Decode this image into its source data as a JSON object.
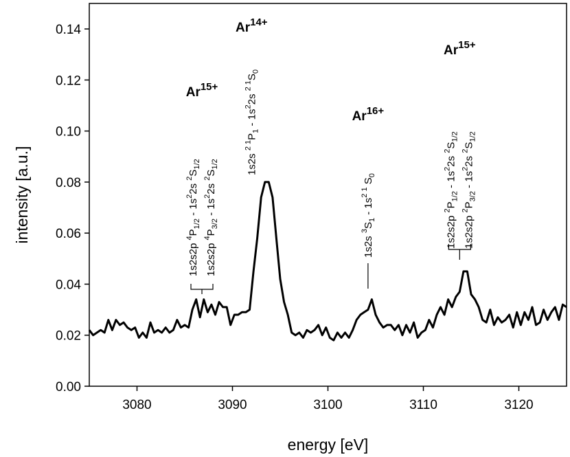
{
  "chart_data": {
    "type": "line",
    "xlabel": "energy [eV]",
    "ylabel": "intensity [a.u.]",
    "xlim": [
      3075,
      3125
    ],
    "ylim": [
      0.0,
      0.15
    ],
    "xticks": [
      "3080",
      "3090",
      "3100",
      "3110",
      "3120"
    ],
    "yticks": [
      "0.00",
      "0.02",
      "0.04",
      "0.06",
      "0.08",
      "0.10",
      "0.12",
      "0.14"
    ],
    "grid": false,
    "series": [
      {
        "name": "spectrum",
        "color": "#000000",
        "x": [
          3075.0,
          3075.4,
          3075.8,
          3076.2,
          3076.6,
          3077.0,
          3077.4,
          3077.8,
          3078.2,
          3078.6,
          3079.0,
          3079.4,
          3079.8,
          3080.2,
          3080.6,
          3081.0,
          3081.4,
          3081.8,
          3082.2,
          3082.6,
          3083.0,
          3083.4,
          3083.8,
          3084.2,
          3084.6,
          3085.0,
          3085.4,
          3085.8,
          3086.2,
          3086.6,
          3087.0,
          3087.4,
          3087.8,
          3088.2,
          3088.6,
          3089.0,
          3089.4,
          3089.8,
          3090.2,
          3090.6,
          3091.0,
          3091.4,
          3091.8,
          3092.2,
          3092.6,
          3093.0,
          3093.4,
          3093.8,
          3094.2,
          3094.6,
          3095.0,
          3095.4,
          3095.8,
          3096.2,
          3096.6,
          3097.0,
          3097.4,
          3097.8,
          3098.2,
          3098.6,
          3099.0,
          3099.4,
          3099.8,
          3100.2,
          3100.6,
          3101.0,
          3101.4,
          3101.8,
          3102.2,
          3102.6,
          3103.0,
          3103.4,
          3103.8,
          3104.2,
          3104.6,
          3105.0,
          3105.4,
          3105.8,
          3106.2,
          3106.6,
          3107.0,
          3107.4,
          3107.8,
          3108.2,
          3108.6,
          3109.0,
          3109.4,
          3109.8,
          3110.2,
          3110.6,
          3111.0,
          3111.4,
          3111.8,
          3112.2,
          3112.6,
          3113.0,
          3113.4,
          3113.8,
          3114.2,
          3114.6,
          3115.0,
          3115.4,
          3115.8,
          3116.2,
          3116.6,
          3117.0,
          3117.4,
          3117.8,
          3118.2,
          3118.6,
          3119.0,
          3119.4,
          3119.8,
          3120.2,
          3120.6,
          3121.0,
          3121.4,
          3121.8,
          3122.2,
          3122.6,
          3123.0,
          3123.4,
          3123.8,
          3124.2,
          3124.6,
          3125.0
        ],
        "y": [
          0.022,
          0.02,
          0.021,
          0.022,
          0.021,
          0.026,
          0.022,
          0.026,
          0.024,
          0.025,
          0.023,
          0.022,
          0.023,
          0.019,
          0.021,
          0.019,
          0.025,
          0.021,
          0.022,
          0.021,
          0.023,
          0.021,
          0.022,
          0.026,
          0.023,
          0.024,
          0.023,
          0.03,
          0.034,
          0.027,
          0.034,
          0.029,
          0.032,
          0.028,
          0.033,
          0.031,
          0.031,
          0.024,
          0.028,
          0.028,
          0.029,
          0.029,
          0.03,
          0.045,
          0.058,
          0.074,
          0.08,
          0.08,
          0.074,
          0.058,
          0.042,
          0.033,
          0.028,
          0.021,
          0.02,
          0.021,
          0.019,
          0.022,
          0.021,
          0.022,
          0.024,
          0.02,
          0.023,
          0.019,
          0.018,
          0.021,
          0.019,
          0.021,
          0.019,
          0.022,
          0.026,
          0.028,
          0.029,
          0.03,
          0.034,
          0.028,
          0.025,
          0.023,
          0.024,
          0.024,
          0.022,
          0.024,
          0.02,
          0.024,
          0.021,
          0.025,
          0.019,
          0.021,
          0.022,
          0.026,
          0.023,
          0.028,
          0.031,
          0.028,
          0.034,
          0.031,
          0.035,
          0.037,
          0.045,
          0.045,
          0.036,
          0.034,
          0.031,
          0.026,
          0.025,
          0.03,
          0.024,
          0.027,
          0.025,
          0.026,
          0.028,
          0.023,
          0.029,
          0.024,
          0.029,
          0.026,
          0.031,
          0.024,
          0.025,
          0.03,
          0.026,
          0.029,
          0.031,
          0.026,
          0.032,
          0.031
        ]
      }
    ],
    "annotations": [
      {
        "id": "ar15-left",
        "ion": "Ar",
        "charge": "15+",
        "x": 3086.8,
        "lines": [
          {
            "prefix": "1s2s2p",
            "sup1": "4",
            "sym": "P",
            "sub1": "1/2",
            "mid": " - 1s",
            "sup2": "2",
            "mid2": "2s",
            "sup3": "2",
            "sym2": "S",
            "sub2": "1/2"
          },
          {
            "prefix": "1s2s2p",
            "sup1": "4",
            "sym": "P",
            "sub1": "3/2",
            "mid": " - 1s",
            "sup2": "2",
            "mid2": "2s",
            "sup3": "2",
            "sym2": "S",
            "sub2": "1/2"
          }
        ]
      },
      {
        "id": "ar14",
        "ion": "Ar",
        "charge": "14+",
        "x": 3092.0,
        "lines": [
          {
            "prefix": "1s2s",
            "sup1": "2 1",
            "sym": "P",
            "sub1": "1",
            "mid": " - 1s",
            "sup2": "2",
            "mid2": "2s",
            "sup3": "2 1",
            "sym2": "S",
            "sub2": "0"
          }
        ]
      },
      {
        "id": "ar16",
        "ion": "Ar",
        "charge": "16+",
        "x": 3104.2,
        "lines": [
          {
            "prefix": "1s2s",
            "sup1": "3",
            "sym": "S",
            "sub1": "1",
            "mid": " - 1s",
            "sup2": "2 1",
            "mid2": "",
            "sup3": "",
            "sym2": "S",
            "sub2": "0"
          }
        ]
      },
      {
        "id": "ar15-right",
        "ion": "Ar",
        "charge": "15+",
        "x": 3113.8,
        "lines": [
          {
            "prefix": "1s2s2p",
            "sup1": "2",
            "sym": "P",
            "sub1": "1/2",
            "mid": " - 1s",
            "sup2": "2",
            "mid2": "2s",
            "sup3": "2",
            "sym2": "S",
            "sub2": "1/2"
          },
          {
            "prefix": "1s2s2p",
            "sup1": "2",
            "sym": "P",
            "sub1": "3/2",
            "mid": " - 1s",
            "sup2": "2",
            "mid2": "2s",
            "sup3": "2",
            "sym2": "S",
            "sub2": "1/2"
          }
        ]
      }
    ]
  }
}
